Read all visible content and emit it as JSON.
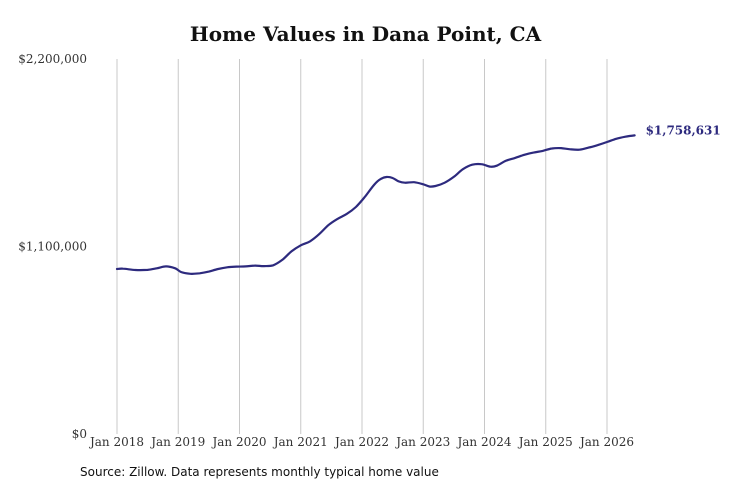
{
  "chart_data": {
    "type": "line",
    "title": "Home Values in Dana Point, CA",
    "source_note": "Source: Zillow. Data represents monthly typical home value",
    "ylim": [
      0,
      2200000
    ],
    "y_ticks": [
      0,
      1100000,
      2200000
    ],
    "y_tick_labels": [
      "$0",
      "$1,100,000",
      "$2,200,000"
    ],
    "x_ticks": [
      2018,
      2019,
      2020,
      2021,
      2022,
      2023,
      2024,
      2025,
      2026
    ],
    "x_tick_labels": [
      "Jan 2018",
      "Jan 2019",
      "Jan 2020",
      "Jan 2021",
      "Jan 2022",
      "Jan 2023",
      "Jan 2024",
      "Jan 2025",
      "Jan 2026"
    ],
    "xlim": [
      2018,
      2026.45
    ],
    "grid": "vertical",
    "line_color": "#2d2a7e",
    "end_label": "$1,758,631",
    "series": [
      {
        "x": [
          2018.0,
          2018.1,
          2018.3,
          2018.5,
          2018.65,
          2018.8,
          2018.95,
          2019.05,
          2019.2,
          2019.35,
          2019.5,
          2019.65,
          2019.8,
          2019.95,
          2020.1,
          2020.25,
          2020.4,
          2020.55,
          2020.7,
          2020.85,
          2021.0,
          2021.15,
          2021.3,
          2021.45,
          2021.6,
          2021.75,
          2021.9,
          2022.05,
          2022.2,
          2022.3,
          2022.4,
          2022.5,
          2022.6,
          2022.7,
          2022.85,
          2023.0,
          2023.1,
          2023.2,
          2023.35,
          2023.5,
          2023.65,
          2023.8,
          2023.95,
          2024.1,
          2024.2,
          2024.35,
          2024.5,
          2024.65,
          2024.8,
          2024.95,
          2025.1,
          2025.25,
          2025.4,
          2025.55,
          2025.7,
          2025.85,
          2026.0,
          2026.15,
          2026.3,
          2026.45
        ],
        "y": [
          968000,
          970000,
          962000,
          963000,
          972000,
          983000,
          972000,
          950000,
          940000,
          943000,
          953000,
          968000,
          978000,
          982000,
          983000,
          988000,
          985000,
          990000,
          1022000,
          1072000,
          1107000,
          1130000,
          1172000,
          1225000,
          1262000,
          1291000,
          1332000,
          1393000,
          1463000,
          1495000,
          1508000,
          1502000,
          1482000,
          1474000,
          1477000,
          1465000,
          1452000,
          1455000,
          1474000,
          1509000,
          1554000,
          1580000,
          1583000,
          1568000,
          1574000,
          1603000,
          1620000,
          1638000,
          1651000,
          1661000,
          1675000,
          1677000,
          1670000,
          1668000,
          1680000,
          1695000,
          1713000,
          1732000,
          1744000,
          1752000
        ]
      }
    ]
  }
}
